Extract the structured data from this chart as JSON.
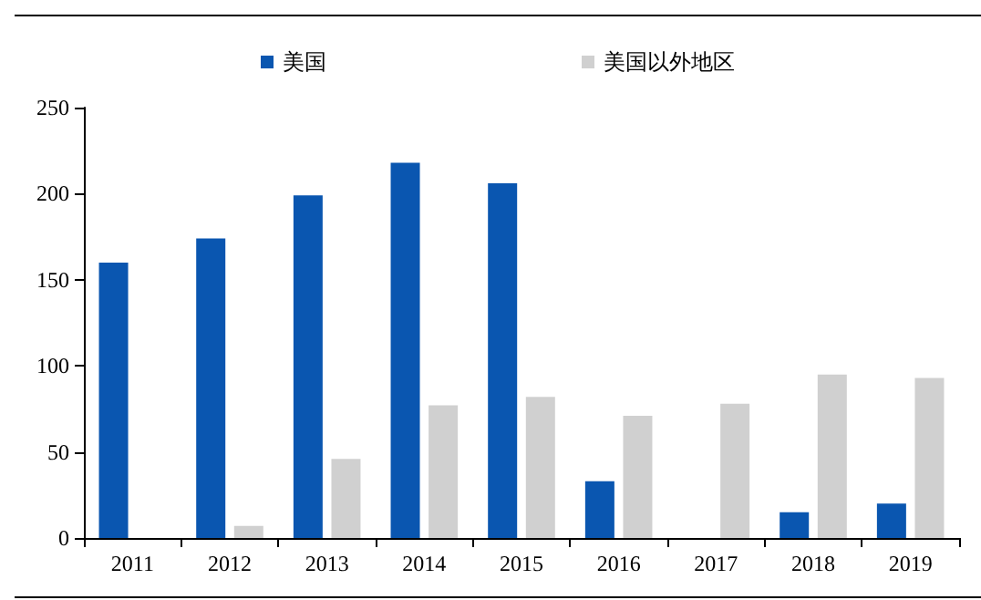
{
  "chart_data": {
    "type": "bar",
    "categories": [
      "2011",
      "2012",
      "2013",
      "2014",
      "2015",
      "2016",
      "2017",
      "2018",
      "2019"
    ],
    "series": [
      {
        "name": "美国",
        "color": "#0a56b0",
        "values": [
          160,
          174,
          199,
          218,
          206,
          33,
          0,
          15,
          20
        ]
      },
      {
        "name": "美国以外地区",
        "color": "#d0d0d0",
        "values": [
          null,
          7,
          46,
          77,
          82,
          71,
          78,
          95,
          93
        ]
      }
    ],
    "ylim": [
      0,
      250
    ],
    "yticks": [
      0,
      50,
      100,
      150,
      200,
      250
    ],
    "grid": false,
    "legend": "top"
  }
}
